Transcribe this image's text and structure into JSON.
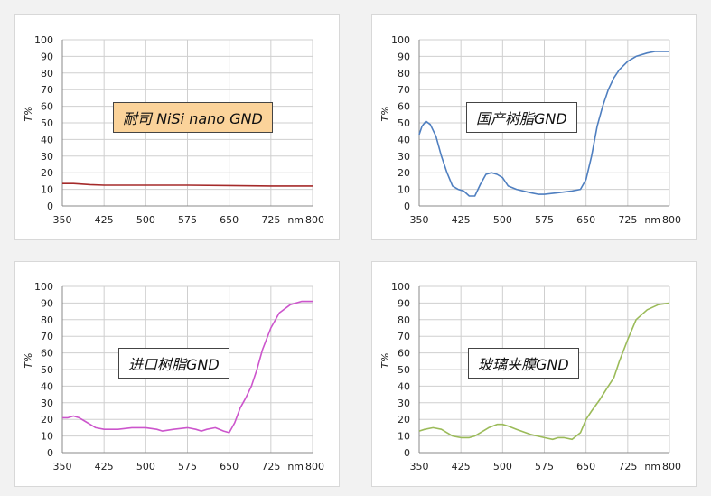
{
  "chart_data": [
    {
      "type": "line",
      "title": "耐司 NiSi nano GND",
      "xlabel": "nm",
      "ylabel": "T%",
      "xlim": [
        350,
        800
      ],
      "ylim": [
        0,
        100
      ],
      "x_ticks": [
        "350",
        "425",
        "500",
        "575",
        "650",
        "725",
        "800"
      ],
      "y_ticks": [
        "0",
        "10",
        "20",
        "30",
        "40",
        "50",
        "60",
        "70",
        "80",
        "90",
        "100"
      ],
      "line_color": "#a52a2a",
      "label_bg": "#fbd39a",
      "grid": true,
      "x": [
        350,
        370,
        400,
        425,
        500,
        575,
        650,
        725,
        800
      ],
      "y": [
        13.5,
        13.5,
        12.8,
        12.5,
        12.5,
        12.5,
        12.3,
        12.0,
        12.0
      ]
    },
    {
      "type": "line",
      "title": "国产树脂GND",
      "xlabel": "nm",
      "ylabel": "T%",
      "xlim": [
        350,
        800
      ],
      "ylim": [
        0,
        100
      ],
      "x_ticks": [
        "350",
        "425",
        "500",
        "575",
        "650",
        "725",
        "800"
      ],
      "y_ticks": [
        "0",
        "10",
        "20",
        "30",
        "40",
        "50",
        "60",
        "70",
        "80",
        "90",
        "100"
      ],
      "line_color": "#4f7fc0",
      "label_bg": "#ffffff",
      "grid": true,
      "x": [
        350,
        355,
        362,
        370,
        380,
        390,
        400,
        410,
        420,
        430,
        440,
        450,
        460,
        470,
        480,
        490,
        500,
        510,
        525,
        550,
        565,
        575,
        600,
        625,
        640,
        650,
        660,
        670,
        680,
        690,
        700,
        710,
        725,
        740,
        760,
        775,
        800
      ],
      "y": [
        43,
        48,
        51,
        49,
        42,
        30,
        20,
        12,
        10,
        9,
        6,
        6,
        13,
        19,
        20,
        19,
        17,
        12,
        10,
        8,
        7,
        7,
        8,
        9,
        10,
        16,
        30,
        48,
        60,
        70,
        77,
        82,
        87,
        90,
        92,
        93,
        93
      ]
    },
    {
      "type": "line",
      "title": "进口树脂GND",
      "xlabel": "nm",
      "ylabel": "T%",
      "xlim": [
        350,
        800
      ],
      "ylim": [
        0,
        100
      ],
      "x_ticks": [
        "350",
        "425",
        "500",
        "575",
        "650",
        "725",
        "800"
      ],
      "y_ticks": [
        "0",
        "10",
        "20",
        "30",
        "40",
        "50",
        "60",
        "70",
        "80",
        "90",
        "100"
      ],
      "line_color": "#cc55cc",
      "label_bg": "#ffffff",
      "grid": true,
      "x": [
        350,
        360,
        370,
        380,
        390,
        400,
        410,
        425,
        450,
        475,
        500,
        520,
        530,
        550,
        575,
        590,
        600,
        610,
        625,
        640,
        650,
        660,
        670,
        680,
        690,
        700,
        710,
        725,
        740,
        760,
        780,
        800
      ],
      "y": [
        21,
        21,
        22,
        21,
        19,
        17,
        15,
        14,
        14,
        15,
        15,
        14,
        13,
        14,
        15,
        14,
        13,
        14,
        15,
        13,
        12,
        18,
        27,
        33,
        40,
        50,
        62,
        75,
        84,
        89,
        91,
        91
      ]
    },
    {
      "type": "line",
      "title": "玻璃夹膜GND",
      "xlabel": "nm",
      "ylabel": "T%",
      "xlim": [
        350,
        800
      ],
      "ylim": [
        0,
        100
      ],
      "x_ticks": [
        "350",
        "425",
        "500",
        "575",
        "650",
        "725",
        "800"
      ],
      "y_ticks": [
        "0",
        "10",
        "20",
        "30",
        "40",
        "50",
        "60",
        "70",
        "80",
        "90",
        "100"
      ],
      "line_color": "#9bbb59",
      "label_bg": "#ffffff",
      "grid": true,
      "x": [
        350,
        360,
        375,
        390,
        400,
        410,
        425,
        440,
        450,
        460,
        475,
        490,
        500,
        510,
        525,
        550,
        575,
        590,
        600,
        610,
        625,
        640,
        650,
        660,
        675,
        690,
        700,
        710,
        725,
        740,
        760,
        780,
        800
      ],
      "y": [
        13,
        14,
        15,
        14,
        12,
        10,
        9,
        9,
        10,
        12,
        15,
        17,
        17,
        16,
        14,
        11,
        9,
        8,
        9,
        9,
        8,
        12,
        20,
        25,
        32,
        40,
        45,
        55,
        68,
        80,
        86,
        89,
        90
      ]
    }
  ]
}
